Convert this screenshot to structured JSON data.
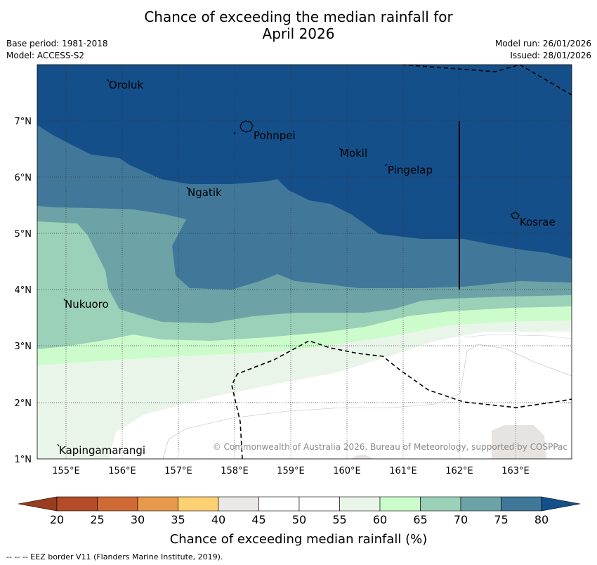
{
  "title": {
    "line1": "Chance of exceeding the median rainfall for",
    "line2": "April 2026"
  },
  "meta": {
    "base_period": "Base period: 1981-2018",
    "model": "Model: ACCESS-S2",
    "model_run": "Model run: 26/01/2026",
    "issued": "Issued: 28/01/2026"
  },
  "axes": {
    "lon_labels": [
      "155°E",
      "156°E",
      "157°E",
      "158°E",
      "159°E",
      "160°E",
      "161°E",
      "162°E",
      "163°E"
    ],
    "lat_labels": [
      "7°N",
      "6°N",
      "5°N",
      "4°N",
      "3°N",
      "2°N",
      "1°N"
    ]
  },
  "places": {
    "oroluk": "Oroluk",
    "pohnpei": "Pohnpei",
    "mokil": "Mokil",
    "pingelap": "Pingelap",
    "ngatik": "Ngatik",
    "kosrae": "Kosrae",
    "nukuoro": "Nukuoro",
    "kapingamarangi": "Kapingamarangi"
  },
  "copyright": "© Commonwealth of Australia 2026, Bureau of Meteorology, supported by COSPPac",
  "colorbar": {
    "ticks": [
      "20",
      "25",
      "30",
      "35",
      "40",
      "45",
      "50",
      "55",
      "60",
      "65",
      "70",
      "75",
      "80"
    ],
    "colors": {
      "lt20": "#9a3c1e",
      "c20_25": "#b54c28",
      "c25_30": "#d06a35",
      "c30_35": "#e79a4c",
      "c35_40": "#fdd171",
      "c40_45": "#ebe8e5",
      "c45_50": "#ffffff",
      "c50_55": "#ffffff",
      "c55_60": "#eaf5ea",
      "c60_65": "#ccfccb",
      "c65_70": "#9bd0b9",
      "c70_75": "#6da3a6",
      "c75_80": "#41789a",
      "gt80": "#144f8a"
    },
    "label": "Chance of exceeding median rainfall (%)"
  },
  "footer": "--  --  -- EEZ border V11 (Flanders Marine Institute, 2019)."
}
